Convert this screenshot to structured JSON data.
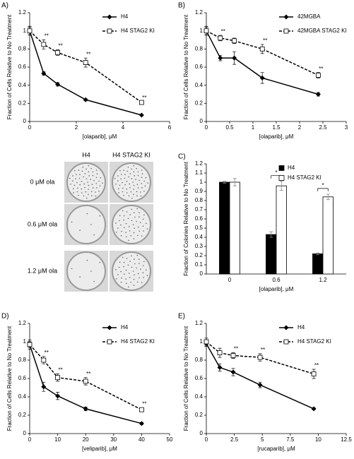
{
  "chart_data": [
    {
      "type": "line",
      "panel": "A)",
      "xlabel": "[olaparib], μM",
      "ylabel": "Fraction of Cells Relative to No Treatment",
      "x": [
        0,
        0.6,
        1.2,
        2.4,
        4.8
      ],
      "xlim": [
        0,
        6
      ],
      "xticks": [
        0,
        2,
        4,
        6
      ],
      "ylim": [
        0,
        1.2
      ],
      "yticks": [
        0,
        0.2,
        0.4,
        0.6,
        0.8,
        1,
        1.2
      ],
      "legend": "upper right",
      "series": [
        {
          "name": "H4",
          "color": "#000000",
          "marker": "diamond",
          "linestyle": "solid",
          "values": [
            1,
            0.53,
            0.41,
            0.24,
            0.07
          ],
          "errors": [
            0.04,
            0.02,
            0.02,
            0.01,
            0.005
          ],
          "significance": [
            null,
            null,
            null,
            null,
            null
          ]
        },
        {
          "name": "H4 STAG2 KI",
          "color": "#000000",
          "marker": "square",
          "linestyle": "dashed",
          "values": [
            1,
            0.85,
            0.76,
            0.65,
            0.21
          ],
          "errors": [
            0.05,
            0.05,
            0.03,
            0.05,
            0.01
          ],
          "significance": [
            null,
            "**",
            "**",
            "**",
            "**"
          ]
        }
      ]
    },
    {
      "type": "line",
      "panel": "B)",
      "xlabel": "[olaparib], μM",
      "ylabel": "Fraction of Cells Relative to No Treatment",
      "x": [
        0,
        0.3,
        0.6,
        1.2,
        2.4
      ],
      "xlim": [
        0,
        3
      ],
      "xticks": [
        0,
        0.5,
        1,
        1.5,
        2,
        2.5,
        3
      ],
      "ylim": [
        0,
        1.2
      ],
      "yticks": [
        0,
        0.2,
        0.4,
        0.6,
        0.8,
        1,
        1.2
      ],
      "legend": "upper right",
      "series": [
        {
          "name": "42MGBA",
          "color": "#000000",
          "marker": "diamond",
          "linestyle": "solid",
          "values": [
            1,
            0.7,
            0.7,
            0.48,
            0.3
          ],
          "errors": [
            0.04,
            0.03,
            0.07,
            0.06,
            0.02
          ],
          "significance": [
            null,
            null,
            null,
            null,
            null
          ]
        },
        {
          "name": "42MGBA STAG2 KI",
          "color": "#000000",
          "marker": "square",
          "linestyle": "dashed",
          "values": [
            1,
            0.92,
            0.89,
            0.8,
            0.51
          ],
          "errors": [
            0.05,
            0.03,
            0.03,
            0.05,
            0.03
          ],
          "significance": [
            null,
            "**",
            null,
            "**",
            "**"
          ]
        }
      ]
    },
    {
      "type": "bar",
      "panel": "C)",
      "xlabel": "[olaparib], μM",
      "ylabel": "Fraction of Colonies Relative to No Treatment",
      "categories": [
        "0",
        "0.6",
        "1.2"
      ],
      "ylim": [
        0,
        1.2
      ],
      "yticks": [
        0,
        0.1,
        0.2,
        0.3,
        0.4,
        0.5,
        0.6,
        0.7,
        0.8,
        0.9,
        1,
        1.1,
        1.2
      ],
      "legend": "upper right",
      "brackets": [
        null,
        "*",
        "*"
      ],
      "series": [
        {
          "name": "H4",
          "color": "#000000",
          "values": [
            1,
            0.43,
            0.22
          ],
          "errors": [
            0.01,
            0.03,
            0.01
          ]
        },
        {
          "name": "H4 STAG2 KI",
          "color": "#ffffff",
          "values": [
            1,
            0.96,
            0.84
          ],
          "errors": [
            0.04,
            0.05,
            0.03
          ]
        }
      ]
    },
    {
      "type": "line",
      "panel": "D)",
      "xlabel": "[veliparib], μM",
      "ylabel": "Fraction of Cells Relative to No Treatment",
      "x": [
        0,
        5,
        10,
        20,
        40
      ],
      "xlim": [
        0,
        50
      ],
      "xticks": [
        0,
        10,
        20,
        30,
        40,
        50
      ],
      "ylim": [
        0,
        1.2
      ],
      "yticks": [
        0,
        0.2,
        0.4,
        0.6,
        0.8,
        1,
        1.2
      ],
      "legend": "upper right",
      "series": [
        {
          "name": "H4",
          "color": "#000000",
          "marker": "diamond",
          "linestyle": "solid",
          "values": [
            0.97,
            0.51,
            0.41,
            0.27,
            0.11
          ],
          "errors": [
            0.03,
            0.05,
            0.04,
            0.02,
            0.01
          ],
          "significance": [
            null,
            null,
            null,
            null,
            null
          ]
        },
        {
          "name": "H4 STAG2 KI",
          "color": "#000000",
          "marker": "square",
          "linestyle": "dashed",
          "values": [
            0.97,
            0.8,
            0.61,
            0.57,
            0.26
          ],
          "errors": [
            0.05,
            0.04,
            0.04,
            0.04,
            0.02
          ],
          "significance": [
            null,
            "**",
            "**",
            "**",
            "**"
          ]
        }
      ]
    },
    {
      "type": "line",
      "panel": "E)",
      "xlabel": "[rucaparib], μM",
      "ylabel": "Fraction of Cells Relative to No Treatment",
      "x": [
        0,
        1.2,
        2.4,
        4.8,
        9.6
      ],
      "xlim": [
        0,
        12.5
      ],
      "xticks": [
        0,
        2.5,
        5,
        7.5,
        10,
        12.5
      ],
      "ylim": [
        0,
        1.2
      ],
      "yticks": [
        0,
        0.2,
        0.4,
        0.6,
        0.8,
        1,
        1.2
      ],
      "legend": "upper right",
      "series": [
        {
          "name": "H4",
          "color": "#000000",
          "marker": "diamond",
          "linestyle": "solid",
          "values": [
            0.98,
            0.72,
            0.67,
            0.53,
            0.27
          ],
          "errors": [
            0.03,
            0.04,
            0.04,
            0.03,
            0.01
          ],
          "significance": [
            null,
            null,
            null,
            null,
            null
          ]
        },
        {
          "name": "H4 STAG2 KI",
          "color": "#000000",
          "marker": "square",
          "linestyle": "dashed",
          "values": [
            1,
            0.88,
            0.85,
            0.83,
            0.65
          ],
          "errors": [
            0.04,
            0.05,
            0.03,
            0.04,
            0.05
          ],
          "significance": [
            null,
            null,
            "**",
            "**",
            "**"
          ]
        }
      ]
    }
  ],
  "plates": {
    "columns": [
      "H4",
      "H4 STAG2 KI"
    ],
    "rows": [
      "0 μM ola",
      "0.6 μM ola",
      "1.2 μM ola"
    ]
  }
}
